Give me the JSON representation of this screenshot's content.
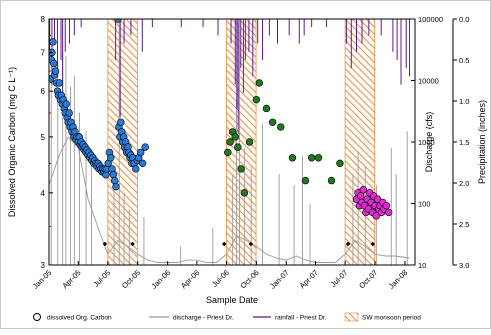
{
  "chart_data": {
    "type": "scatter",
    "xlabel": "Sample Date",
    "ylabel_left": "Dissolved Organic Carbon (mg C L⁻¹)",
    "ylabel_right1": "Discharge (cfs)",
    "ylabel_right2": "Precipitation (inches)",
    "x_ticks": [
      "Jan-05",
      "Apr-05",
      "Jul-05",
      "Oct-05",
      "Jan-06",
      "Apr-06",
      "Jul-06",
      "Oct-06",
      "Jan-07",
      "Apr-07",
      "Jul-07",
      "Oct-07",
      "Jan-08"
    ],
    "doc_axis": {
      "ylim": [
        3,
        8
      ],
      "ticks": [
        "3",
        "4",
        "5",
        "6",
        "7",
        "8"
      ],
      "scale": "log"
    },
    "discharge_axis": {
      "ylim": [
        10,
        100000
      ],
      "ticks": [
        "10",
        "100",
        "1000",
        "10000",
        "100000"
      ],
      "scale": "log"
    },
    "precip_axis": {
      "ylim": [
        0.0,
        3.0
      ],
      "ticks": [
        "0.0",
        "0.5",
        "1.0",
        "1.5",
        "2.0",
        "2.5",
        "3.0"
      ],
      "inverted": true
    },
    "legend": {
      "position": "bottom",
      "items": [
        "dissolved Org. Carbon",
        "discharge - Priest Dr.",
        "rainfall - Priest Dr.",
        "SW monsoon period"
      ]
    },
    "colors": {
      "doc_2005": "#2a7ad6",
      "doc_2006": "#1f7a1f",
      "doc_2007": "#e02bd4",
      "discharge": "#9a9a9a",
      "rainfall": "#5a1a8c",
      "monsoon": "#f08a40"
    },
    "monsoon_periods": [
      [
        "2005-07-01",
        "2005-09-30"
      ],
      [
        "2006-07-01",
        "2006-09-30"
      ],
      [
        "2007-07-01",
        "2007-09-30"
      ]
    ],
    "doc_series": [
      {
        "group": "2005",
        "points": [
          [
            "2005-01-05",
            6.3
          ],
          [
            "2005-01-08",
            6.8
          ],
          [
            "2005-01-10",
            7.0
          ],
          [
            "2005-01-13",
            7.3
          ],
          [
            "2005-01-16",
            6.7
          ],
          [
            "2005-01-18",
            6.4
          ],
          [
            "2005-01-21",
            6.5
          ],
          [
            "2005-01-24",
            6.2
          ],
          [
            "2005-01-27",
            6.0
          ],
          [
            "2005-01-30",
            5.9
          ],
          [
            "2005-02-02",
            6.2
          ],
          [
            "2005-02-05",
            5.8
          ],
          [
            "2005-02-08",
            5.9
          ],
          [
            "2005-02-11",
            5.7
          ],
          [
            "2005-02-14",
            5.8
          ],
          [
            "2005-02-17",
            5.6
          ],
          [
            "2005-02-20",
            5.5
          ],
          [
            "2005-02-23",
            5.7
          ],
          [
            "2005-02-26",
            5.4
          ],
          [
            "2005-03-01",
            5.3
          ],
          [
            "2005-03-04",
            5.5
          ],
          [
            "2005-03-07",
            5.2
          ],
          [
            "2005-03-10",
            5.3
          ],
          [
            "2005-03-13",
            5.1
          ],
          [
            "2005-03-16",
            5.2
          ],
          [
            "2005-03-19",
            5.0
          ],
          [
            "2005-03-22",
            5.1
          ],
          [
            "2005-03-25",
            4.95
          ],
          [
            "2005-03-28",
            5.0
          ],
          [
            "2005-04-01",
            4.9
          ],
          [
            "2005-04-04",
            5.0
          ],
          [
            "2005-04-07",
            4.85
          ],
          [
            "2005-04-10",
            4.9
          ],
          [
            "2005-04-13",
            4.8
          ],
          [
            "2005-04-16",
            4.85
          ],
          [
            "2005-04-19",
            4.75
          ],
          [
            "2005-04-22",
            4.8
          ],
          [
            "2005-04-25",
            4.7
          ],
          [
            "2005-04-28",
            4.75
          ],
          [
            "2005-05-01",
            4.65
          ],
          [
            "2005-05-04",
            4.7
          ],
          [
            "2005-05-07",
            4.6
          ],
          [
            "2005-05-10",
            4.65
          ],
          [
            "2005-05-13",
            4.55
          ],
          [
            "2005-05-16",
            4.6
          ],
          [
            "2005-05-19",
            4.5
          ],
          [
            "2005-05-22",
            4.55
          ],
          [
            "2005-05-25",
            4.5
          ],
          [
            "2005-05-28",
            4.45
          ],
          [
            "2005-06-01",
            4.5
          ],
          [
            "2005-06-04",
            4.4
          ],
          [
            "2005-06-07",
            4.45
          ],
          [
            "2005-06-10",
            4.4
          ],
          [
            "2005-06-13",
            4.35
          ],
          [
            "2005-06-16",
            4.4
          ],
          [
            "2005-06-19",
            4.35
          ],
          [
            "2005-06-22",
            4.4
          ],
          [
            "2005-06-25",
            4.3
          ],
          [
            "2005-06-28",
            4.4
          ],
          [
            "2005-07-02",
            4.5
          ],
          [
            "2005-07-06",
            4.7
          ],
          [
            "2005-07-10",
            4.6
          ],
          [
            "2005-07-14",
            4.4
          ],
          [
            "2005-07-18",
            4.3
          ],
          [
            "2005-07-22",
            4.2
          ],
          [
            "2005-07-26",
            4.1
          ],
          [
            "2005-08-01",
            8.0
          ],
          [
            "2005-08-04",
            5.2
          ],
          [
            "2005-08-07",
            5.0
          ],
          [
            "2005-08-10",
            5.3
          ],
          [
            "2005-08-13",
            5.1
          ],
          [
            "2005-08-16",
            4.9
          ],
          [
            "2005-08-19",
            5.0
          ],
          [
            "2005-08-22",
            4.8
          ],
          [
            "2005-08-25",
            4.9
          ],
          [
            "2005-08-28",
            4.7
          ],
          [
            "2005-09-01",
            4.8
          ],
          [
            "2005-09-04",
            4.7
          ],
          [
            "2005-09-07",
            4.6
          ],
          [
            "2005-09-10",
            4.65
          ],
          [
            "2005-09-13",
            4.5
          ],
          [
            "2005-09-16",
            4.6
          ],
          [
            "2005-09-20",
            4.5
          ],
          [
            "2005-09-25",
            4.4
          ],
          [
            "2005-09-30",
            4.55
          ],
          [
            "2005-10-04",
            4.6
          ],
          [
            "2005-10-10",
            4.7
          ],
          [
            "2005-10-16",
            4.5
          ],
          [
            "2005-10-24",
            4.8
          ]
        ]
      },
      {
        "group": "2006",
        "points": [
          [
            "2006-07-05",
            4.7
          ],
          [
            "2006-07-12",
            4.9
          ],
          [
            "2006-07-20",
            5.1
          ],
          [
            "2006-07-28",
            5.0
          ],
          [
            "2006-08-05",
            4.8
          ],
          [
            "2006-08-15",
            4.4
          ],
          [
            "2006-08-25",
            4.0
          ],
          [
            "2006-09-10",
            4.9
          ],
          [
            "2006-10-01",
            5.8
          ],
          [
            "2006-10-10",
            6.2
          ],
          [
            "2006-11-01",
            5.6
          ],
          [
            "2006-11-20",
            5.3
          ],
          [
            "2006-12-15",
            5.2
          ],
          [
            "2007-01-20",
            4.6
          ],
          [
            "2007-03-01",
            4.2
          ],
          [
            "2007-03-20",
            4.6
          ],
          [
            "2007-04-10",
            4.6
          ],
          [
            "2007-05-20",
            4.2
          ],
          [
            "2007-06-15",
            4.5
          ]
        ]
      },
      {
        "group": "2007",
        "points": [
          [
            "2007-08-05",
            3.9
          ],
          [
            "2007-08-10",
            4.0
          ],
          [
            "2007-08-14",
            3.8
          ],
          [
            "2007-08-18",
            3.95
          ],
          [
            "2007-08-22",
            3.85
          ],
          [
            "2007-08-26",
            4.05
          ],
          [
            "2007-08-30",
            3.8
          ],
          [
            "2007-09-03",
            3.7
          ],
          [
            "2007-09-07",
            3.9
          ],
          [
            "2007-09-11",
            3.75
          ],
          [
            "2007-09-15",
            4.0
          ],
          [
            "2007-09-19",
            3.85
          ],
          [
            "2007-09-23",
            3.7
          ],
          [
            "2007-09-27",
            3.95
          ],
          [
            "2007-10-01",
            3.8
          ],
          [
            "2007-10-05",
            3.65
          ],
          [
            "2007-10-09",
            3.9
          ],
          [
            "2007-10-13",
            3.75
          ],
          [
            "2007-10-17",
            3.8
          ],
          [
            "2007-10-21",
            3.7
          ],
          [
            "2007-10-25",
            3.85
          ],
          [
            "2007-10-29",
            3.75
          ],
          [
            "2007-11-05",
            3.8
          ],
          [
            "2007-11-12",
            3.7
          ]
        ]
      }
    ],
    "discharge_baseflow": [
      [
        "2005-01-01",
        200
      ],
      [
        "2005-02-01",
        600
      ],
      [
        "2005-03-01",
        1200
      ],
      [
        "2005-04-01",
        800
      ],
      [
        "2005-05-01",
        120
      ],
      [
        "2005-06-01",
        40
      ],
      [
        "2005-07-01",
        15
      ],
      [
        "2005-08-01",
        25
      ],
      [
        "2005-09-01",
        20
      ],
      [
        "2005-10-01",
        15
      ],
      [
        "2005-11-01",
        12
      ],
      [
        "2005-12-01",
        11
      ],
      [
        "2006-01-01",
        11
      ],
      [
        "2006-02-01",
        11
      ],
      [
        "2006-03-01",
        12
      ],
      [
        "2006-04-01",
        12
      ],
      [
        "2006-05-01",
        11
      ],
      [
        "2006-06-01",
        11
      ],
      [
        "2006-07-01",
        15
      ],
      [
        "2006-08-01",
        30
      ],
      [
        "2006-09-01",
        25
      ],
      [
        "2006-10-01",
        20
      ],
      [
        "2006-11-01",
        15
      ],
      [
        "2006-12-01",
        13
      ],
      [
        "2007-01-01",
        12
      ],
      [
        "2007-02-01",
        14
      ],
      [
        "2007-03-01",
        12
      ],
      [
        "2007-04-01",
        11
      ],
      [
        "2007-05-01",
        11
      ],
      [
        "2007-06-01",
        11
      ],
      [
        "2007-07-01",
        15
      ],
      [
        "2007-08-01",
        25
      ],
      [
        "2007-09-01",
        20
      ],
      [
        "2007-10-01",
        15
      ],
      [
        "2007-11-01",
        14
      ],
      [
        "2007-12-01",
        14
      ],
      [
        "2008-01-15",
        13
      ]
    ],
    "discharge_spikes": [
      [
        "2005-01-08",
        10000
      ],
      [
        "2005-01-28",
        20000
      ],
      [
        "2005-02-12",
        30000
      ],
      [
        "2005-02-22",
        25000
      ],
      [
        "2005-03-08",
        8000
      ],
      [
        "2005-03-20",
        12000
      ],
      [
        "2005-04-05",
        3000
      ],
      [
        "2005-04-25",
        1500
      ],
      [
        "2005-05-12",
        600
      ],
      [
        "2005-07-20",
        400
      ],
      [
        "2005-08-05",
        100000
      ],
      [
        "2005-08-20",
        150
      ],
      [
        "2005-09-05",
        80
      ],
      [
        "2005-10-20",
        60
      ],
      [
        "2006-02-10",
        20
      ],
      [
        "2006-05-20",
        40
      ],
      [
        "2006-07-20",
        300
      ],
      [
        "2006-08-01",
        5000
      ],
      [
        "2006-08-10",
        100000
      ],
      [
        "2006-08-25",
        800
      ],
      [
        "2006-09-15",
        400
      ],
      [
        "2006-10-20",
        2000
      ],
      [
        "2006-12-10",
        300
      ],
      [
        "2007-01-25",
        200
      ],
      [
        "2007-02-20",
        600
      ],
      [
        "2007-03-15",
        100
      ],
      [
        "2007-07-25",
        300
      ],
      [
        "2007-08-10",
        700
      ],
      [
        "2007-09-01",
        400
      ],
      [
        "2007-10-05",
        200
      ],
      [
        "2007-11-20",
        800
      ],
      [
        "2007-12-05",
        300
      ],
      [
        "2008-01-08",
        1500
      ]
    ],
    "rainfall": [
      [
        "2005-01-03",
        0.4
      ],
      [
        "2005-01-10",
        0.8
      ],
      [
        "2005-01-18",
        0.3
      ],
      [
        "2005-01-27",
        0.6
      ],
      [
        "2005-02-07",
        0.5
      ],
      [
        "2005-02-12",
        0.9
      ],
      [
        "2005-02-20",
        0.4
      ],
      [
        "2005-03-05",
        0.3
      ],
      [
        "2005-03-20",
        0.2
      ],
      [
        "2005-04-10",
        0.1
      ],
      [
        "2005-07-25",
        0.5
      ],
      [
        "2005-08-08",
        1.2
      ],
      [
        "2005-08-20",
        0.3
      ],
      [
        "2005-09-10",
        0.2
      ],
      [
        "2005-10-15",
        0.4
      ],
      [
        "2005-11-15",
        0.1
      ],
      [
        "2006-02-12",
        0.1
      ],
      [
        "2006-04-20",
        0.1
      ],
      [
        "2006-06-05",
        0.2
      ],
      [
        "2006-07-15",
        0.3
      ],
      [
        "2006-07-28",
        0.8
      ],
      [
        "2006-08-02",
        1.1
      ],
      [
        "2006-08-06",
        1.4
      ],
      [
        "2006-08-14",
        0.6
      ],
      [
        "2006-08-22",
        0.9
      ],
      [
        "2006-08-28",
        0.5
      ],
      [
        "2006-09-08",
        0.4
      ],
      [
        "2006-09-20",
        0.7
      ],
      [
        "2006-10-05",
        0.3
      ],
      [
        "2006-10-20",
        0.5
      ],
      [
        "2006-11-10",
        0.2
      ],
      [
        "2006-12-05",
        0.3
      ],
      [
        "2007-01-10",
        0.2
      ],
      [
        "2007-02-10",
        0.3
      ],
      [
        "2007-02-25",
        0.2
      ],
      [
        "2007-03-20",
        0.1
      ],
      [
        "2007-05-05",
        0.1
      ],
      [
        "2007-07-05",
        0.3
      ],
      [
        "2007-07-20",
        0.6
      ],
      [
        "2007-08-05",
        0.4
      ],
      [
        "2007-08-22",
        0.3
      ],
      [
        "2007-09-12",
        0.2
      ],
      [
        "2007-10-20",
        0.2
      ],
      [
        "2007-11-25",
        0.4
      ],
      [
        "2007-12-08",
        0.5
      ],
      [
        "2007-12-20",
        0.8
      ],
      [
        "2008-01-05",
        0.6
      ],
      [
        "2008-01-15",
        0.7
      ]
    ],
    "diamond_markers": [
      "2005-06-22",
      "2005-09-15",
      "2006-06-24",
      "2006-09-14",
      "2007-07-10",
      "2007-09-24"
    ]
  }
}
